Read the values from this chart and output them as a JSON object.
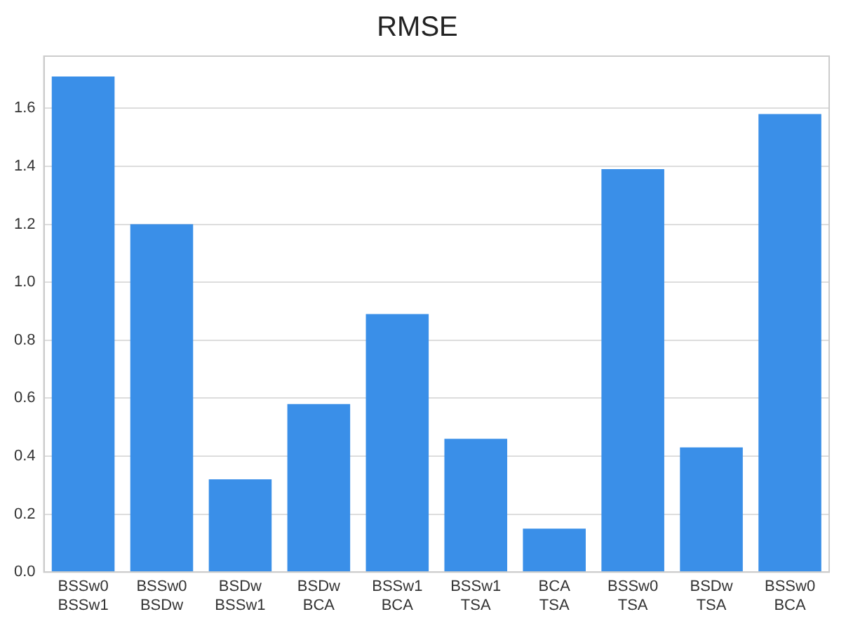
{
  "chart_data": {
    "type": "bar",
    "title": "RMSE",
    "categories": [
      "BSSw0\nBSSw1",
      "BSSw0\nBSDw",
      "BSDw\nBSSw1",
      "BSDw\nBCA",
      "BSSw1\nBCA",
      "BSSw1\nTSA",
      "BCA\nTSA",
      "BSSw0\nTSA",
      "BSDw\nTSA",
      "BSSw0\nBCA"
    ],
    "values": [
      1.71,
      1.2,
      0.32,
      0.58,
      0.89,
      0.46,
      0.15,
      1.39,
      0.43,
      1.58
    ],
    "color": "#3a8fe8",
    "ylim": [
      0,
      1.78
    ],
    "yticks": [
      {
        "value": 0,
        "label": "0.0"
      },
      {
        "value": 0.2,
        "label": "0.2"
      },
      {
        "value": 0.4,
        "label": "0.4"
      },
      {
        "value": 0.6,
        "label": "0.6"
      },
      {
        "value": 0.8,
        "label": "0.8"
      },
      {
        "value": 1,
        "label": "1.0"
      },
      {
        "value": 1.2,
        "label": "1.2"
      },
      {
        "value": 1.4,
        "label": "1.4"
      },
      {
        "value": 1.6,
        "label": "1.6"
      }
    ],
    "grid": "y"
  }
}
